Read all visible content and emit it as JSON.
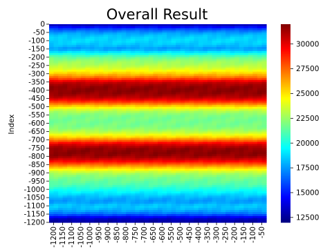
{
  "chart_data": {
    "type": "heatmap",
    "title": "Overall Result",
    "xlabel": "",
    "ylabel": "Index",
    "colormap": "jet",
    "colorbar": {
      "min": 12000,
      "max": 32000,
      "ticks": [
        "12500",
        "15000",
        "17500",
        "20000",
        "22500",
        "25000",
        "27500",
        "30000"
      ],
      "tick_values": [
        12500,
        15000,
        17500,
        20000,
        22500,
        25000,
        27500,
        30000
      ]
    },
    "x_tick_labels": [
      "-1200",
      "-1150",
      "-1100",
      "-1050",
      "-1000",
      "-950",
      "-900",
      "-850",
      "-800",
      "-750",
      "-700",
      "-650",
      "-600",
      "-550",
      "-500",
      "-450",
      "-400",
      "-350",
      "-300",
      "-250",
      "-200",
      "-150",
      "-100",
      "-50"
    ],
    "y_tick_labels": [
      "0",
      "-50",
      "-100",
      "-150",
      "-200",
      "-250",
      "-300",
      "-350",
      "-400",
      "-450",
      "-500",
      "-550",
      "-600",
      "-650",
      "-700",
      "-750",
      "-800",
      "-850",
      "-900",
      "-950",
      "-1000",
      "-1050",
      "-1100",
      "-1150",
      "-1200"
    ],
    "row_profile": {
      "description_rows": "approximate value for each row from Index 0 to -1200 in steps of 25",
      "index": [
        0,
        -25,
        -50,
        -75,
        -100,
        -125,
        -150,
        -175,
        -200,
        -225,
        -250,
        -275,
        -300,
        -325,
        -350,
        -375,
        -400,
        -425,
        -450,
        -475,
        -500,
        -525,
        -550,
        -575,
        -600,
        -625,
        -650,
        -675,
        -700,
        -725,
        -750,
        -775,
        -800,
        -825,
        -850,
        -875,
        -900,
        -925,
        -950,
        -975,
        -1000,
        -1025,
        -1050,
        -1075,
        -1100,
        -1125,
        -1150,
        -1175,
        -1200
      ],
      "values": [
        12500,
        15500,
        17500,
        18500,
        18800,
        18400,
        17500,
        19500,
        21500,
        22500,
        23000,
        24000,
        25500,
        27500,
        30500,
        31500,
        31800,
        31500,
        30500,
        28000,
        25000,
        23000,
        22000,
        21800,
        21800,
        22000,
        23000,
        24500,
        27000,
        30000,
        31500,
        31800,
        31500,
        30000,
        27500,
        25000,
        23000,
        22000,
        21500,
        21000,
        20000,
        19000,
        18000,
        17500,
        18500,
        18000,
        16500,
        13500,
        12500
      ]
    }
  }
}
